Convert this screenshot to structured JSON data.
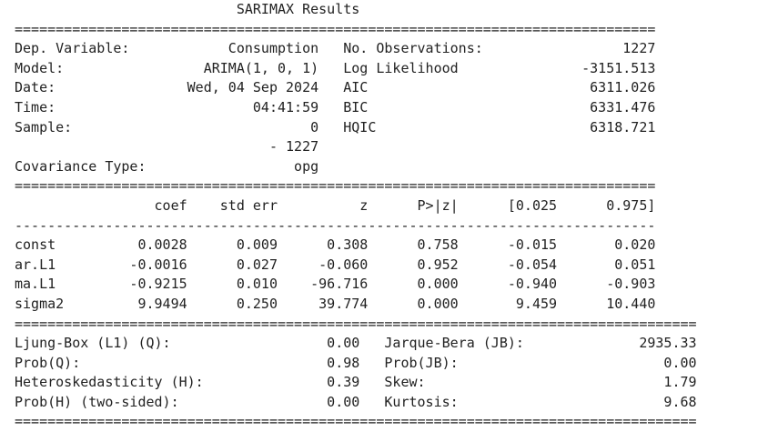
{
  "report": {
    "lines": [
      "                           SARIMAX Results                                ",
      "==============================================================================",
      "Dep. Variable:            Consumption   No. Observations:                 1227",
      "Model:                 ARIMA(1, 0, 1)   Log Likelihood               -3151.513",
      "Date:                Wed, 04 Sep 2024   AIC                           6311.026",
      "Time:                        04:41:59   BIC                           6331.476",
      "Sample:                             0   HQIC                          6318.721",
      "                               - 1227                                         ",
      "Covariance Type:                  opg                                         ",
      "==============================================================================",
      "                 coef    std err          z      P>|z|      [0.025      0.975]",
      "------------------------------------------------------------------------------",
      "const          0.0028      0.009      0.308      0.758      -0.015       0.020",
      "ar.L1         -0.0016      0.027     -0.060      0.952      -0.054       0.051",
      "ma.L1         -0.9215      0.010    -96.716      0.000      -0.940      -0.903",
      "sigma2         9.9494      0.250     39.774      0.000       9.459      10.440",
      "===================================================================================",
      "Ljung-Box (L1) (Q):                   0.00   Jarque-Bera (JB):              2935.33",
      "Prob(Q):                              0.98   Prob(JB):                         0.00",
      "Heteroskedasticity (H):               0.39   Skew:                             1.79",
      "Prob(H) (two-sided):                  0.00   Kurtosis:                         9.68",
      "==================================================================================="
    ]
  }
}
